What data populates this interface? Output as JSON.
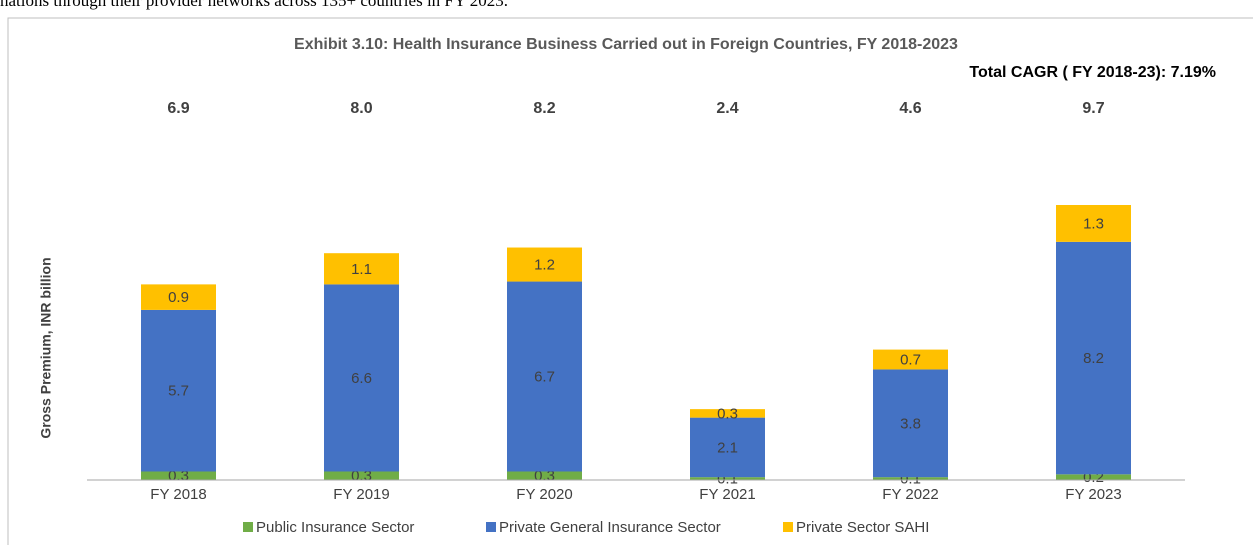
{
  "intro_text": "nations through their provider networks across 135+ countries in FY 2023.",
  "chart_data": {
    "type": "stacked_bar",
    "title": "Exhibit 3.10: Health Insurance Business Carried out in Foreign Countries, FY 2018-2023",
    "annotation": "Total CAGR ( FY 2018-23): 7.19%",
    "y_label": "Gross Premium, INR billion",
    "categories": [
      "FY 2018",
      "FY 2019",
      "FY 2020",
      "FY 2021",
      "FY 2022",
      "FY 2023"
    ],
    "totals": [
      6.9,
      8,
      8.2,
      2.4,
      4.6,
      9.7
    ],
    "total_labels": [
      "6.9",
      "8.0",
      "8.2",
      "2.4",
      "4.6",
      "9.7"
    ],
    "series": [
      {
        "name": "Public Insurance Sector",
        "color": "#70ad47",
        "values": [
          0.3,
          0.3,
          0.3,
          0.1,
          0.1,
          0.2
        ]
      },
      {
        "name": "Private General Insurance Sector",
        "color": "#4472c4",
        "values": [
          5.7,
          6.6,
          6.7,
          2.1,
          3.8,
          8.2
        ]
      },
      {
        "name": "Private Sector SAHI",
        "color": "#ffc000",
        "values": [
          0.9,
          1.1,
          1.2,
          0.3,
          0.7,
          1.3
        ]
      }
    ],
    "ylim": [
      0,
      12
    ]
  }
}
